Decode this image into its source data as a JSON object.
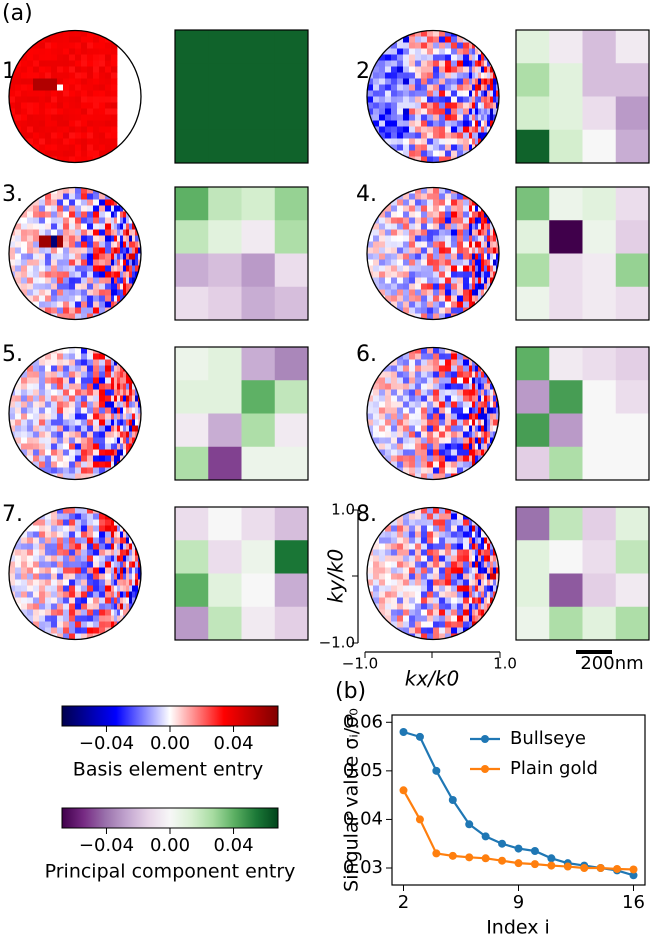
{
  "panel_a": {
    "label": "(a)",
    "clim": [
      -0.068,
      0.068
    ],
    "panels": [
      {
        "label": "1.",
        "matrix": [
          [
            0.06,
            0.06,
            0.06,
            0.06
          ],
          [
            0.06,
            0.06,
            0.06,
            0.06
          ],
          [
            0.06,
            0.06,
            0.06,
            0.06
          ],
          [
            0.06,
            0.06,
            0.06,
            0.06
          ]
        ]
      },
      {
        "label": "2.",
        "matrix": [
          [
            0.01,
            -0.005,
            -0.02,
            -0.005
          ],
          [
            0.025,
            0.01,
            -0.02,
            -0.02
          ],
          [
            0.015,
            0.01,
            -0.01,
            -0.03
          ],
          [
            0.06,
            0.015,
            0.0,
            -0.025
          ]
        ]
      },
      {
        "label": "3.",
        "matrix": [
          [
            0.04,
            0.02,
            0.015,
            0.03
          ],
          [
            0.02,
            0.01,
            -0.005,
            0.025
          ],
          [
            -0.025,
            -0.02,
            -0.03,
            -0.01
          ],
          [
            -0.01,
            -0.015,
            -0.025,
            -0.02
          ]
        ]
      },
      {
        "label": "4.",
        "matrix": [
          [
            0.035,
            0.005,
            0.01,
            -0.01
          ],
          [
            0.01,
            -0.068,
            0.005,
            -0.015
          ],
          [
            0.025,
            -0.01,
            -0.005,
            0.03
          ],
          [
            0.005,
            -0.01,
            -0.005,
            -0.01
          ]
        ]
      },
      {
        "label": "5.",
        "matrix": [
          [
            0.005,
            0.01,
            -0.025,
            -0.035
          ],
          [
            0.01,
            0.01,
            0.04,
            0.02
          ],
          [
            -0.005,
            -0.025,
            0.025,
            -0.005
          ],
          [
            0.025,
            -0.05,
            0.005,
            0.005
          ]
        ]
      },
      {
        "label": "6.",
        "matrix": [
          [
            0.04,
            -0.005,
            -0.01,
            -0.015
          ],
          [
            -0.03,
            0.045,
            0.0,
            -0.01
          ],
          [
            0.045,
            -0.03,
            0.0,
            0.0
          ],
          [
            -0.015,
            0.025,
            0.0,
            0.0
          ]
        ]
      },
      {
        "label": "7.",
        "matrix": [
          [
            -0.01,
            0.0,
            -0.01,
            -0.02
          ],
          [
            0.02,
            -0.01,
            0.005,
            0.055
          ],
          [
            0.04,
            0.01,
            0.0,
            -0.025
          ],
          [
            -0.03,
            0.02,
            -0.005,
            -0.015
          ]
        ]
      },
      {
        "label": "8.",
        "matrix": [
          [
            -0.04,
            0.02,
            -0.015,
            0.01
          ],
          [
            0.01,
            0.0,
            -0.01,
            0.02
          ],
          [
            0.01,
            -0.045,
            -0.015,
            -0.005
          ],
          [
            0.005,
            0.025,
            0.01,
            0.025
          ]
        ]
      }
    ],
    "inset_axes": {
      "xlabel": "kx/k0",
      "ylabel": "ky/k0",
      "xlim": [
        -1,
        1
      ],
      "ylim": [
        -1,
        1
      ],
      "xticks": [
        {
          "value": -1,
          "label": "−1.0"
        },
        {
          "value": 1,
          "label": "1.0"
        }
      ],
      "yticks": [
        {
          "value": -1,
          "label": "−1.0"
        },
        {
          "value": 1,
          "label": "1.0"
        }
      ]
    },
    "scale_bar": "200nm"
  },
  "colorbars": [
    {
      "label": "Basis element entry",
      "cmap": "seismic",
      "lim": [
        -0.068,
        0.068
      ],
      "ticks": [
        {
          "value": -0.04,
          "label": "−0.04"
        },
        {
          "value": 0,
          "label": "0.00"
        },
        {
          "value": 0.04,
          "label": "0.04"
        }
      ]
    },
    {
      "label": "Principal component entry",
      "cmap": "PRGn",
      "lim": [
        -0.068,
        0.068
      ],
      "ticks": [
        {
          "value": -0.04,
          "label": "−0.04"
        },
        {
          "value": 0,
          "label": "0.00"
        },
        {
          "value": 0.04,
          "label": "0.04"
        }
      ]
    }
  ],
  "chart_data": {
    "type": "line",
    "panel_label": "(b)",
    "xlabel": "Index i",
    "ylabel": "Singular value σᵢ/σ₀",
    "x": [
      2,
      3,
      4,
      5,
      6,
      7,
      8,
      9,
      10,
      11,
      12,
      13,
      14,
      15,
      16
    ],
    "series": [
      {
        "name": "Bullseye",
        "color": "#1f77b4",
        "values": [
          0.058,
          0.057,
          0.05,
          0.044,
          0.039,
          0.0365,
          0.035,
          0.034,
          0.0335,
          0.032,
          0.031,
          0.0305,
          0.03,
          0.0295,
          0.0285
        ]
      },
      {
        "name": "Plain gold",
        "color": "#ff7f0e",
        "values": [
          0.046,
          0.04,
          0.033,
          0.0325,
          0.0322,
          0.032,
          0.0315,
          0.031,
          0.0308,
          0.0305,
          0.0303,
          0.03,
          0.03,
          0.0298,
          0.0297
        ]
      }
    ],
    "xlim": [
      1.3,
      16.7
    ],
    "ylim": [
      0.0265,
      0.0615
    ],
    "xticks": [
      2,
      9,
      16
    ],
    "yticks": [
      0.03,
      0.04,
      0.05,
      0.06
    ],
    "legend": "upper right"
  }
}
